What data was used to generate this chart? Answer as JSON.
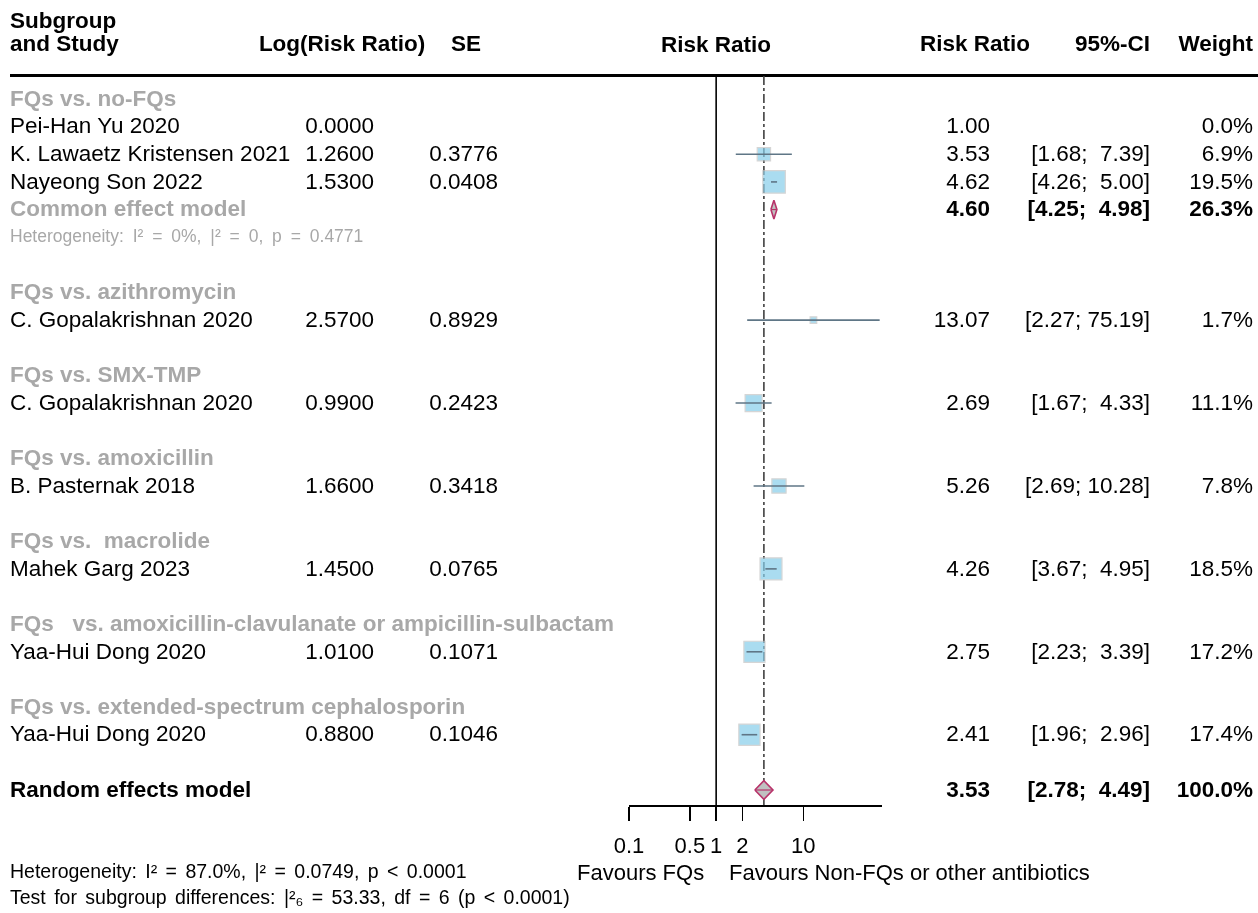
{
  "chart_data": [
    {
      "type": "other",
      "categories": [
        "Subgroup\nand Study",
        "Log(Risk Ratio)",
        "SE",
        "Risk Ratio",
        "95%-CI",
        "Weight"
      ],
      "cell_labels": [
        [
          "FQs vs. no-FQs",
          null,
          null,
          null,
          null,
          null
        ],
        [
          "Pei-Han Yu 2020",
          "0.0000",
          null,
          "1.00",
          null,
          "0.0%"
        ],
        [
          "K. Lawaetz Kristensen 2021",
          "1.2600",
          "0.3776",
          "3.53",
          "[1.68;  7.39]",
          "6.9%"
        ],
        [
          "Nayeong Son 2022",
          "1.5300",
          "0.0408",
          "4.62",
          "[4.26;  5.00]",
          "19.5%"
        ],
        [
          "Common effect model",
          null,
          null,
          "4.60",
          "[4.25;  4.98]",
          "26.3%"
        ],
        [
          "Heterogeneity: I² = 0%, |² = 0, p = 0.4771",
          null,
          null,
          null,
          null,
          null
        ],
        [
          null,
          null,
          null,
          null,
          null,
          null
        ],
        [
          "FQs vs. azithromycin",
          null,
          null,
          null,
          null,
          null
        ],
        [
          "C. Gopalakrishnan 2020",
          "2.5700",
          "0.8929",
          "13.07",
          "[2.27; 75.19]",
          "1.7%"
        ],
        [
          null,
          null,
          null,
          null,
          null,
          null
        ],
        [
          "FQs vs. SMX-TMP",
          null,
          null,
          null,
          null,
          null
        ],
        [
          "C. Gopalakrishnan 2020",
          "0.9900",
          "0.2423",
          "2.69",
          "[1.67;  4.33]",
          "11.1%"
        ],
        [
          null,
          null,
          null,
          null,
          null,
          null
        ],
        [
          "FQs vs. amoxicillin",
          null,
          null,
          null,
          null,
          null
        ],
        [
          "B. Pasternak 2018",
          "1.6600",
          "0.3418",
          "5.26",
          "[2.69; 10.28]",
          "7.8%"
        ],
        [
          null,
          null,
          null,
          null,
          null,
          null
        ],
        [
          "FQs vs.  macrolide",
          null,
          null,
          null,
          null,
          null
        ],
        [
          "Mahek Garg 2023",
          "1.4500",
          "0.0765",
          "4.26",
          "[3.67;  4.95]",
          "18.5%"
        ],
        [
          null,
          null,
          null,
          null,
          null,
          null
        ],
        [
          "FQs   vs. amoxicillin-clavulanate or ampicillin-sulbactam",
          null,
          null,
          null,
          null,
          null
        ],
        [
          "Yaa-Hui Dong 2020",
          "1.0100",
          "0.1071",
          "2.75",
          "[2.23;  3.39]",
          "17.2%"
        ],
        [
          null,
          null,
          null,
          null,
          null,
          null
        ],
        [
          "FQs vs. extended-spectrum cephalosporin",
          null,
          null,
          null,
          null,
          null
        ],
        [
          "Yaa-Hui Dong 2020",
          "0.8800",
          "0.1046",
          "2.41",
          "[1.96;  2.96]",
          "17.4%"
        ],
        [
          null,
          null,
          null,
          null,
          null,
          null
        ],
        [
          "Random effects model",
          null,
          null,
          "3.53",
          "[2.78;  4.49]",
          "100.0%"
        ]
      ],
      "annotations": [
        "Heterogeneity: I² = 87.0%, |² = 0.0749, p < 0.0001",
        "Test for subgroup differences: |²₆ = 53.33, df = 6 (p < 0.0001)"
      ]
    },
    {
      "type": "scatter",
      "title": "Risk Ratio",
      "orientation": "horizontal",
      "log": "x",
      "tick_labels": "x",
      "categories": [
        null,
        null,
        null,
        null,
        null,
        null,
        null,
        null,
        null,
        null,
        null,
        null,
        null,
        null,
        null,
        null,
        null,
        null,
        null,
        null,
        null,
        null,
        null,
        null,
        null,
        null
      ],
      "xlim": [
        0.1,
        80
      ],
      "xticks": [
        0.1,
        0.5,
        1,
        2,
        10
      ],
      "series": [
        {
          "type": "bubble",
          "marker": "square",
          "color": "#87ceeb",
          "values": [
            null,
            null,
            3.53,
            4.62,
            null,
            null,
            null,
            null,
            13.07,
            null,
            null,
            2.69,
            null,
            null,
            5.26,
            null,
            null,
            4.26,
            null,
            null,
            2.75,
            null,
            null,
            2.41,
            null,
            null
          ],
          "errors": [
            null,
            null,
            [
              1.68,
              7.39
            ],
            [
              4.26,
              5.0
            ],
            null,
            null,
            null,
            null,
            [
              2.27,
              75.19
            ],
            null,
            null,
            [
              1.67,
              4.33
            ],
            null,
            null,
            [
              2.69,
              10.28
            ],
            null,
            null,
            [
              3.67,
              4.95
            ],
            null,
            null,
            [
              2.23,
              3.39
            ],
            null,
            null,
            [
              1.96,
              2.96
            ],
            null,
            null
          ],
          "sizes": [
            null,
            null,
            0.35,
            1,
            null,
            null,
            null,
            null,
            0.087,
            null,
            null,
            0.57,
            null,
            null,
            0.4,
            null,
            null,
            0.95,
            null,
            null,
            0.88,
            null,
            null,
            0.89,
            null,
            null
          ]
        },
        {
          "type": "scatter",
          "marker": "diamond",
          "color": "#c0c0c0",
          "values": [
            null,
            null,
            null,
            null,
            4.6,
            null,
            null,
            null,
            null,
            null,
            null,
            null,
            null,
            null,
            null,
            null,
            null,
            null,
            null,
            null,
            null,
            null,
            null,
            null,
            null,
            3.53
          ],
          "errors": [
            null,
            null,
            null,
            null,
            [
              4.25,
              4.98
            ],
            null,
            null,
            null,
            null,
            null,
            null,
            null,
            null,
            null,
            null,
            null,
            null,
            null,
            null,
            null,
            null,
            null,
            null,
            null,
            null,
            [
              2.78,
              4.49
            ]
          ]
        }
      ],
      "ref_lines": [
        {
          "axis": "x",
          "value": 1,
          "color": "#000000",
          "line_style": "solid"
        },
        {
          "axis": "x",
          "value": 3.53,
          "color": "#404040",
          "line_style": "dashdot"
        }
      ],
      "annotations": [
        "Favours FQs",
        "Favours Non-FQs or other antibiotics"
      ]
    }
  ]
}
